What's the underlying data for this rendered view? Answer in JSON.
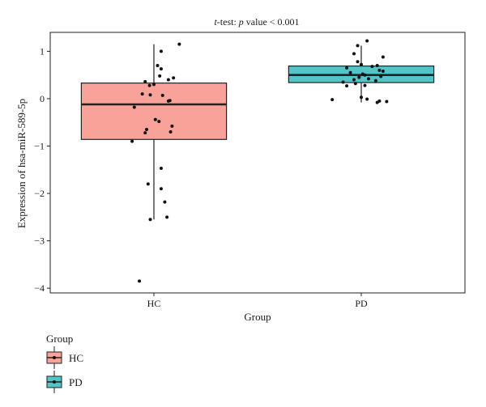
{
  "chart_data": {
    "type": "boxplot",
    "title_prefix": "t",
    "title_suffix": "-test: ",
    "title_p": "p",
    "title_rest": " value < 0.001",
    "xlabel": "Group",
    "ylabel": "Expression of hsa-miR-589-5p",
    "ylim": [
      -4.1,
      1.4
    ],
    "yticks": [
      1,
      0,
      -1,
      -2,
      -3,
      -4
    ],
    "grid": false,
    "legend_title": "Group",
    "legend_position": "bottom-left",
    "categories": [
      "HC",
      "PD"
    ],
    "colors": {
      "HC": "#f8a29a",
      "PD": "#53c4c7"
    },
    "boxes": [
      {
        "group": "HC",
        "q1": -0.86,
        "median": -0.12,
        "q3": 0.33,
        "whisker_low": -2.55,
        "whisker_high": 1.15
      },
      {
        "group": "PD",
        "q1": 0.34,
        "median": 0.5,
        "q3": 0.69,
        "whisker_low": -0.08,
        "whisker_high": 1.12
      }
    ],
    "points": {
      "HC": [
        {
          "j": 0.05,
          "y": 0.7
        },
        {
          "j": 0.1,
          "y": 0.63
        },
        {
          "j": 0.08,
          "y": 0.48
        },
        {
          "j": -0.12,
          "y": 0.36
        },
        {
          "j": -0.06,
          "y": 0.28
        },
        {
          "j": 0.0,
          "y": 0.3
        },
        {
          "j": 0.2,
          "y": 0.4
        },
        {
          "j": 0.27,
          "y": 0.44
        },
        {
          "j": -0.16,
          "y": 0.1
        },
        {
          "j": -0.05,
          "y": 0.08
        },
        {
          "j": 0.12,
          "y": 0.07
        },
        {
          "j": 0.2,
          "y": -0.05
        },
        {
          "j": 0.22,
          "y": -0.04
        },
        {
          "j": -0.27,
          "y": -0.18
        },
        {
          "j": -0.1,
          "y": -0.65
        },
        {
          "j": -0.12,
          "y": -0.72
        },
        {
          "j": 0.02,
          "y": -0.44
        },
        {
          "j": 0.07,
          "y": -0.48
        },
        {
          "j": 0.23,
          "y": -0.7
        },
        {
          "j": 0.25,
          "y": -0.58
        },
        {
          "j": -0.3,
          "y": -0.9
        },
        {
          "j": 0.1,
          "y": 1.0
        },
        {
          "j": 0.35,
          "y": 1.15
        },
        {
          "j": 0.1,
          "y": -1.47
        },
        {
          "j": -0.08,
          "y": -1.8
        },
        {
          "j": 0.1,
          "y": -1.9
        },
        {
          "j": 0.15,
          "y": -2.18
        },
        {
          "j": -0.05,
          "y": -2.55
        },
        {
          "j": 0.18,
          "y": -2.5
        },
        {
          "j": -0.2,
          "y": -3.85
        }
      ],
      "PD": [
        {
          "j": -0.05,
          "y": 1.12
        },
        {
          "j": 0.08,
          "y": 1.22
        },
        {
          "j": -0.1,
          "y": 0.95
        },
        {
          "j": -0.05,
          "y": 0.78
        },
        {
          "j": 0.0,
          "y": 0.72
        },
        {
          "j": 0.15,
          "y": 0.68
        },
        {
          "j": 0.3,
          "y": 0.88
        },
        {
          "j": 0.22,
          "y": 0.7
        },
        {
          "j": -0.2,
          "y": 0.65
        },
        {
          "j": 0.25,
          "y": 0.6
        },
        {
          "j": 0.3,
          "y": 0.58
        },
        {
          "j": -0.15,
          "y": 0.55
        },
        {
          "j": 0.02,
          "y": 0.52
        },
        {
          "j": 0.05,
          "y": 0.5
        },
        {
          "j": 0.27,
          "y": 0.47
        },
        {
          "j": -0.03,
          "y": 0.45
        },
        {
          "j": 0.1,
          "y": 0.42
        },
        {
          "j": -0.1,
          "y": 0.4
        },
        {
          "j": 0.2,
          "y": 0.38
        },
        {
          "j": -0.25,
          "y": 0.35
        },
        {
          "j": -0.08,
          "y": 0.32
        },
        {
          "j": 0.05,
          "y": 0.28
        },
        {
          "j": -0.2,
          "y": 0.27
        },
        {
          "j": 0.0,
          "y": 0.03
        },
        {
          "j": 0.08,
          "y": -0.01
        },
        {
          "j": -0.4,
          "y": -0.02
        },
        {
          "j": 0.25,
          "y": -0.05
        },
        {
          "j": 0.22,
          "y": -0.08
        },
        {
          "j": 0.35,
          "y": -0.06
        }
      ]
    }
  }
}
